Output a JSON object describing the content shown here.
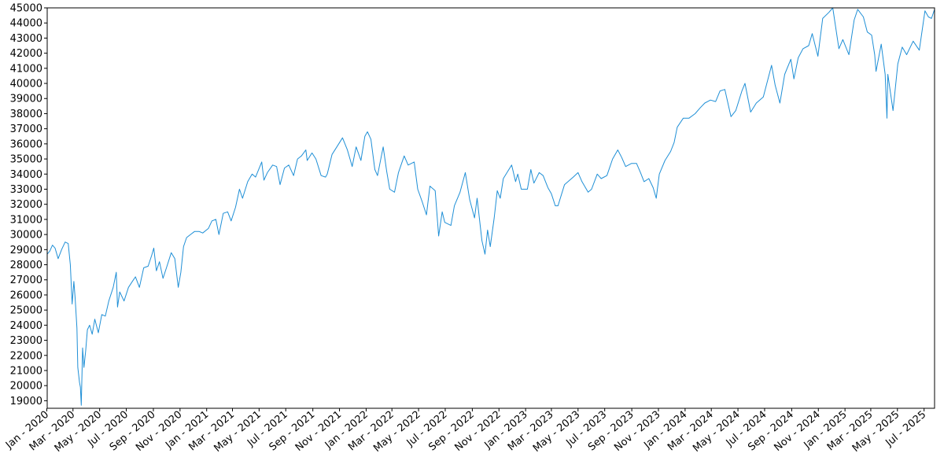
{
  "chart_data": {
    "type": "line",
    "title": "",
    "xlabel": "",
    "ylabel": "",
    "xlim": [
      "2020-01-02",
      "2025-07-25"
    ],
    "ylim": [
      18500,
      45000
    ],
    "y_ticks": [
      19000,
      20000,
      21000,
      22000,
      23000,
      24000,
      25000,
      26000,
      27000,
      28000,
      29000,
      30000,
      31000,
      32000,
      33000,
      34000,
      35000,
      36000,
      37000,
      38000,
      39000,
      40000,
      41000,
      42000,
      43000,
      44000,
      45000
    ],
    "x_ticks": [
      {
        "date": "2020-01-01",
        "label": "Jan - 2020"
      },
      {
        "date": "2020-03-01",
        "label": "Mar - 2020"
      },
      {
        "date": "2020-05-01",
        "label": "May - 2020"
      },
      {
        "date": "2020-07-01",
        "label": "Jul - 2020"
      },
      {
        "date": "2020-09-01",
        "label": "Sep - 2020"
      },
      {
        "date": "2020-11-01",
        "label": "Nov - 2020"
      },
      {
        "date": "2021-01-01",
        "label": "Jan - 2021"
      },
      {
        "date": "2021-03-01",
        "label": "Mar - 2021"
      },
      {
        "date": "2021-05-01",
        "label": "May - 2021"
      },
      {
        "date": "2021-07-01",
        "label": "Jul - 2021"
      },
      {
        "date": "2021-09-01",
        "label": "Sep - 2021"
      },
      {
        "date": "2021-11-01",
        "label": "Nov - 2021"
      },
      {
        "date": "2022-01-01",
        "label": "Jan - 2022"
      },
      {
        "date": "2022-03-01",
        "label": "Mar - 2022"
      },
      {
        "date": "2022-05-01",
        "label": "May - 2022"
      },
      {
        "date": "2022-07-01",
        "label": "Jul - 2022"
      },
      {
        "date": "2022-09-01",
        "label": "Sep - 2022"
      },
      {
        "date": "2022-11-01",
        "label": "Nov - 2022"
      },
      {
        "date": "2023-01-01",
        "label": "Jan - 2023"
      },
      {
        "date": "2023-03-01",
        "label": "Mar - 2023"
      },
      {
        "date": "2023-05-01",
        "label": "May - 2023"
      },
      {
        "date": "2023-07-01",
        "label": "Jul - 2023"
      },
      {
        "date": "2023-09-01",
        "label": "Sep - 2023"
      },
      {
        "date": "2023-11-01",
        "label": "Nov - 2023"
      },
      {
        "date": "2024-01-01",
        "label": "Jan - 2024"
      },
      {
        "date": "2024-03-01",
        "label": "Mar - 2024"
      },
      {
        "date": "2024-05-01",
        "label": "May - 2024"
      },
      {
        "date": "2024-07-01",
        "label": "Jul - 2024"
      },
      {
        "date": "2024-09-01",
        "label": "Sep - 2024"
      },
      {
        "date": "2024-11-01",
        "label": "Nov - 2024"
      },
      {
        "date": "2025-01-01",
        "label": "Jan - 2025"
      },
      {
        "date": "2025-03-01",
        "label": "Mar - 2025"
      },
      {
        "date": "2025-05-01",
        "label": "May - 2025"
      },
      {
        "date": "2025-07-01",
        "label": "Jul - 2025"
      }
    ],
    "grid": false,
    "legend": false,
    "line_color": "#1f8fd6",
    "series": [
      {
        "points": [
          [
            "2020-01-02",
            28700
          ],
          [
            "2020-01-08",
            28900
          ],
          [
            "2020-01-14",
            29300
          ],
          [
            "2020-01-20",
            29100
          ],
          [
            "2020-01-27",
            28400
          ],
          [
            "2020-02-04",
            29000
          ],
          [
            "2020-02-12",
            29500
          ],
          [
            "2020-02-19",
            29400
          ],
          [
            "2020-02-24",
            28000
          ],
          [
            "2020-02-28",
            25400
          ],
          [
            "2020-03-03",
            26900
          ],
          [
            "2020-03-06",
            25800
          ],
          [
            "2020-03-10",
            23800
          ],
          [
            "2020-03-12",
            21200
          ],
          [
            "2020-03-16",
            20200
          ],
          [
            "2020-03-18",
            19900
          ],
          [
            "2020-03-20",
            18700
          ],
          [
            "2020-03-23",
            22500
          ],
          [
            "2020-03-26",
            21200
          ],
          [
            "2020-03-30",
            22300
          ],
          [
            "2020-04-03",
            23700
          ],
          [
            "2020-04-08",
            24000
          ],
          [
            "2020-04-14",
            23400
          ],
          [
            "2020-04-20",
            24400
          ],
          [
            "2020-04-28",
            23500
          ],
          [
            "2020-05-06",
            24700
          ],
          [
            "2020-05-14",
            24600
          ],
          [
            "2020-05-22",
            25600
          ],
          [
            "2020-06-01",
            26500
          ],
          [
            "2020-06-08",
            27500
          ],
          [
            "2020-06-11",
            25200
          ],
          [
            "2020-06-16",
            26200
          ],
          [
            "2020-06-26",
            25600
          ],
          [
            "2020-07-06",
            26500
          ],
          [
            "2020-07-15",
            26900
          ],
          [
            "2020-07-22",
            27200
          ],
          [
            "2020-07-31",
            26500
          ],
          [
            "2020-08-10",
            27800
          ],
          [
            "2020-08-20",
            27900
          ],
          [
            "2020-08-28",
            28600
          ],
          [
            "2020-09-02",
            29100
          ],
          [
            "2020-09-08",
            27600
          ],
          [
            "2020-09-15",
            28200
          ],
          [
            "2020-09-23",
            27100
          ],
          [
            "2020-10-01",
            27800
          ],
          [
            "2020-10-12",
            28800
          ],
          [
            "2020-10-20",
            28400
          ],
          [
            "2020-10-28",
            26500
          ],
          [
            "2020-11-03",
            27500
          ],
          [
            "2020-11-09",
            29200
          ],
          [
            "2020-11-16",
            29800
          ],
          [
            "2020-11-25",
            30000
          ],
          [
            "2020-12-04",
            30200
          ],
          [
            "2020-12-15",
            30200
          ],
          [
            "2020-12-23",
            30100
          ],
          [
            "2021-01-05",
            30400
          ],
          [
            "2021-01-13",
            30900
          ],
          [
            "2021-01-22",
            31000
          ],
          [
            "2021-01-29",
            30000
          ],
          [
            "2021-02-08",
            31400
          ],
          [
            "2021-02-18",
            31500
          ],
          [
            "2021-02-26",
            30900
          ],
          [
            "2021-03-08",
            31800
          ],
          [
            "2021-03-17",
            33000
          ],
          [
            "2021-03-24",
            32400
          ],
          [
            "2021-04-05",
            33500
          ],
          [
            "2021-04-15",
            34000
          ],
          [
            "2021-04-23",
            33800
          ],
          [
            "2021-05-07",
            34800
          ],
          [
            "2021-05-12",
            33600
          ],
          [
            "2021-05-20",
            34100
          ],
          [
            "2021-06-01",
            34600
          ],
          [
            "2021-06-10",
            34500
          ],
          [
            "2021-06-18",
            33300
          ],
          [
            "2021-06-28",
            34400
          ],
          [
            "2021-07-08",
            34600
          ],
          [
            "2021-07-19",
            33900
          ],
          [
            "2021-07-28",
            35000
          ],
          [
            "2021-08-06",
            35200
          ],
          [
            "2021-08-16",
            35600
          ],
          [
            "2021-08-19",
            34900
          ],
          [
            "2021-08-30",
            35400
          ],
          [
            "2021-09-08",
            35000
          ],
          [
            "2021-09-20",
            33900
          ],
          [
            "2021-09-30",
            33800
          ],
          [
            "2021-10-04",
            34000
          ],
          [
            "2021-10-15",
            35300
          ],
          [
            "2021-10-26",
            35800
          ],
          [
            "2021-11-08",
            36400
          ],
          [
            "2021-11-19",
            35600
          ],
          [
            "2021-11-30",
            34500
          ],
          [
            "2021-12-09",
            35800
          ],
          [
            "2021-12-20",
            34900
          ],
          [
            "2021-12-29",
            36500
          ],
          [
            "2022-01-04",
            36800
          ],
          [
            "2022-01-12",
            36300
          ],
          [
            "2022-01-21",
            34300
          ],
          [
            "2022-01-27",
            33900
          ],
          [
            "2022-02-09",
            35800
          ],
          [
            "2022-02-17",
            34200
          ],
          [
            "2022-02-24",
            33000
          ],
          [
            "2022-03-07",
            32800
          ],
          [
            "2022-03-16",
            34100
          ],
          [
            "2022-03-29",
            35200
          ],
          [
            "2022-04-07",
            34600
          ],
          [
            "2022-04-21",
            34800
          ],
          [
            "2022-04-29",
            33000
          ],
          [
            "2022-05-09",
            32200
          ],
          [
            "2022-05-19",
            31300
          ],
          [
            "2022-05-27",
            33200
          ],
          [
            "2022-06-08",
            32900
          ],
          [
            "2022-06-16",
            29900
          ],
          [
            "2022-06-24",
            31500
          ],
          [
            "2022-06-30",
            30800
          ],
          [
            "2022-07-14",
            30600
          ],
          [
            "2022-07-22",
            31900
          ],
          [
            "2022-08-04",
            32800
          ],
          [
            "2022-08-16",
            34100
          ],
          [
            "2022-08-26",
            32300
          ],
          [
            "2022-09-06",
            31100
          ],
          [
            "2022-09-12",
            32400
          ],
          [
            "2022-09-23",
            29600
          ],
          [
            "2022-09-30",
            28700
          ],
          [
            "2022-10-06",
            30300
          ],
          [
            "2022-10-12",
            29200
          ],
          [
            "2022-10-21",
            31100
          ],
          [
            "2022-10-28",
            32900
          ],
          [
            "2022-11-04",
            32400
          ],
          [
            "2022-11-11",
            33700
          ],
          [
            "2022-11-30",
            34600
          ],
          [
            "2022-12-09",
            33500
          ],
          [
            "2022-12-14",
            34000
          ],
          [
            "2022-12-22",
            33000
          ],
          [
            "2023-01-05",
            33000
          ],
          [
            "2023-01-13",
            34300
          ],
          [
            "2023-01-20",
            33400
          ],
          [
            "2023-02-01",
            34100
          ],
          [
            "2023-02-10",
            33900
          ],
          [
            "2023-02-21",
            33100
          ],
          [
            "2023-03-01",
            32700
          ],
          [
            "2023-03-10",
            31900
          ],
          [
            "2023-03-16",
            31900
          ],
          [
            "2023-03-31",
            33300
          ],
          [
            "2023-04-12",
            33600
          ],
          [
            "2023-04-20",
            33800
          ],
          [
            "2023-05-01",
            34100
          ],
          [
            "2023-05-10",
            33500
          ],
          [
            "2023-05-24",
            32800
          ],
          [
            "2023-06-01",
            33000
          ],
          [
            "2023-06-14",
            34000
          ],
          [
            "2023-06-23",
            33700
          ],
          [
            "2023-07-06",
            33900
          ],
          [
            "2023-07-19",
            35000
          ],
          [
            "2023-07-31",
            35600
          ],
          [
            "2023-08-09",
            35100
          ],
          [
            "2023-08-18",
            34500
          ],
          [
            "2023-08-31",
            34700
          ],
          [
            "2023-09-12",
            34700
          ],
          [
            "2023-09-21",
            34100
          ],
          [
            "2023-09-29",
            33500
          ],
          [
            "2023-10-10",
            33700
          ],
          [
            "2023-10-20",
            33100
          ],
          [
            "2023-10-27",
            32400
          ],
          [
            "2023-11-03",
            34000
          ],
          [
            "2023-11-16",
            34900
          ],
          [
            "2023-11-29",
            35500
          ],
          [
            "2023-12-07",
            36100
          ],
          [
            "2023-12-14",
            37100
          ],
          [
            "2023-12-28",
            37700
          ],
          [
            "2024-01-10",
            37700
          ],
          [
            "2024-01-24",
            38000
          ],
          [
            "2024-02-05",
            38400
          ],
          [
            "2024-02-15",
            38700
          ],
          [
            "2024-02-28",
            38900
          ],
          [
            "2024-03-11",
            38800
          ],
          [
            "2024-03-21",
            39500
          ],
          [
            "2024-04-01",
            39600
          ],
          [
            "2024-04-15",
            37800
          ],
          [
            "2024-04-26",
            38200
          ],
          [
            "2024-05-10",
            39500
          ],
          [
            "2024-05-17",
            40000
          ],
          [
            "2024-05-30",
            38100
          ],
          [
            "2024-06-12",
            38700
          ],
          [
            "2024-06-28",
            39100
          ],
          [
            "2024-07-17",
            41200
          ],
          [
            "2024-07-25",
            39900
          ],
          [
            "2024-08-05",
            38700
          ],
          [
            "2024-08-16",
            40600
          ],
          [
            "2024-08-30",
            41600
          ],
          [
            "2024-09-06",
            40300
          ],
          [
            "2024-09-16",
            41700
          ],
          [
            "2024-09-27",
            42300
          ],
          [
            "2024-10-10",
            42500
          ],
          [
            "2024-10-18",
            43300
          ],
          [
            "2024-10-31",
            41800
          ],
          [
            "2024-11-11",
            44300
          ],
          [
            "2024-11-25",
            44700
          ],
          [
            "2024-12-04",
            45000
          ],
          [
            "2024-12-18",
            42300
          ],
          [
            "2024-12-27",
            42900
          ],
          [
            "2025-01-10",
            41900
          ],
          [
            "2025-01-22",
            44200
          ],
          [
            "2025-01-30",
            44900
          ],
          [
            "2025-02-12",
            44400
          ],
          [
            "2025-02-21",
            43400
          ],
          [
            "2025-03-03",
            43200
          ],
          [
            "2025-03-10",
            41900
          ],
          [
            "2025-03-13",
            40800
          ],
          [
            "2025-03-25",
            42600
          ],
          [
            "2025-04-03",
            40600
          ],
          [
            "2025-04-07",
            37700
          ],
          [
            "2025-04-09",
            40600
          ],
          [
            "2025-04-21",
            38200
          ],
          [
            "2025-05-02",
            41300
          ],
          [
            "2025-05-12",
            42400
          ],
          [
            "2025-05-22",
            41900
          ],
          [
            "2025-06-06",
            42800
          ],
          [
            "2025-06-20",
            42200
          ],
          [
            "2025-07-03",
            44800
          ],
          [
            "2025-07-11",
            44400
          ],
          [
            "2025-07-18",
            44300
          ],
          [
            "2025-07-25",
            44900
          ]
        ]
      }
    ]
  }
}
